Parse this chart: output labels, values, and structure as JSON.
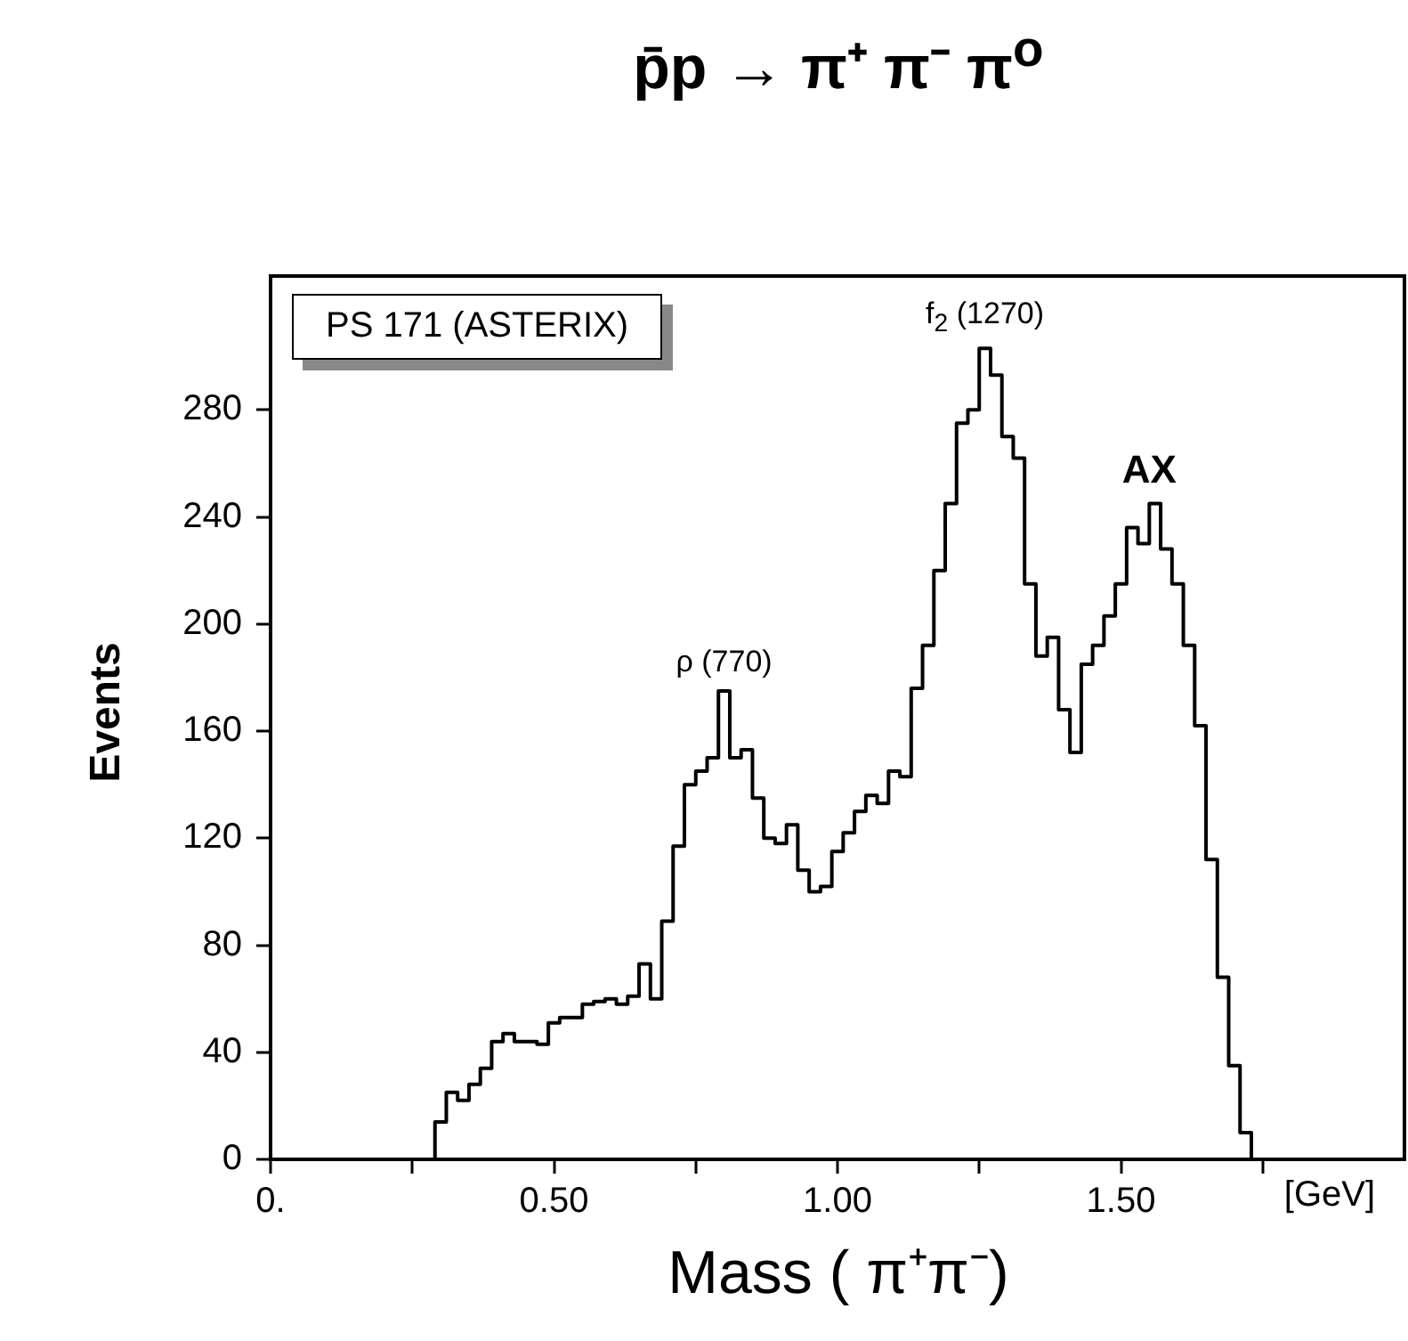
{
  "chart_data": {
    "type": "histogram",
    "title": "p̄p → π⁺ π⁻ π$^{o}$",
    "xlabel": "Mass ( π⁺π⁻)",
    "ylabel": "Events",
    "color": "#000000",
    "bins": [
      0.29,
      0.31,
      0.33,
      0.35,
      0.37,
      0.39,
      0.41,
      0.43,
      0.45,
      0.47,
      0.49,
      0.51,
      0.53,
      0.55,
      0.57,
      0.59,
      0.61,
      0.63,
      0.65,
      0.67,
      0.69,
      0.71,
      0.73,
      0.75,
      0.77,
      0.79,
      0.81,
      0.83,
      0.85,
      0.87,
      0.89,
      0.91,
      0.93,
      0.95,
      0.97,
      0.99,
      1.01,
      1.03,
      1.05,
      1.07,
      1.09,
      1.11,
      1.13,
      1.15,
      1.17,
      1.19,
      1.21,
      1.23,
      1.25,
      1.27,
      1.29,
      1.31,
      1.33,
      1.35,
      1.37,
      1.39,
      1.41,
      1.43,
      1.45,
      1.47,
      1.49,
      1.51,
      1.53,
      1.55,
      1.57,
      1.59,
      1.61,
      1.63,
      1.65,
      1.67,
      1.69,
      1.71,
      1.73
    ],
    "values": [
      14,
      25,
      22,
      28,
      34,
      44,
      47,
      44,
      44,
      43,
      51,
      53,
      53,
      58,
      59,
      60,
      58,
      61,
      73,
      60,
      89,
      117,
      140,
      145,
      150,
      175,
      150,
      153,
      135,
      120,
      118,
      125,
      108,
      100,
      102,
      115,
      122,
      130,
      136,
      133,
      145,
      143,
      176,
      192,
      220,
      245,
      275,
      280,
      303,
      293,
      270,
      262,
      215,
      188,
      195,
      168,
      152,
      185,
      192,
      203,
      215,
      236,
      230,
      245,
      228,
      215,
      192,
      162,
      112,
      68,
      35,
      10
    ],
    "xlim": [
      0,
      2.0
    ],
    "ylim": [
      0,
      330
    ],
    "xticks": [
      {
        "value": 0,
        "label": "0."
      },
      {
        "value": 0.25,
        "label": null
      },
      {
        "value": 0.5,
        "label": "0.50"
      },
      {
        "value": 0.75,
        "label": null
      },
      {
        "value": 1.0,
        "label": "1.00"
      },
      {
        "value": 1.25,
        "label": null
      },
      {
        "value": 1.5,
        "label": "1.50"
      },
      {
        "value": 1.75,
        "label": null
      }
    ],
    "yticks": [
      0,
      40,
      80,
      120,
      160,
      200,
      240,
      280
    ],
    "annotations": [
      "PS 171 (ASTERIX)",
      "[GeV]",
      {
        "text": "ρ (770)",
        "x": 0.8,
        "y": 175
      },
      {
        "text": "f$_{2}$ (1270)",
        "x": 1.26,
        "y": 303
      },
      {
        "text": "AX",
        "x": 1.55,
        "y": 245
      }
    ]
  }
}
